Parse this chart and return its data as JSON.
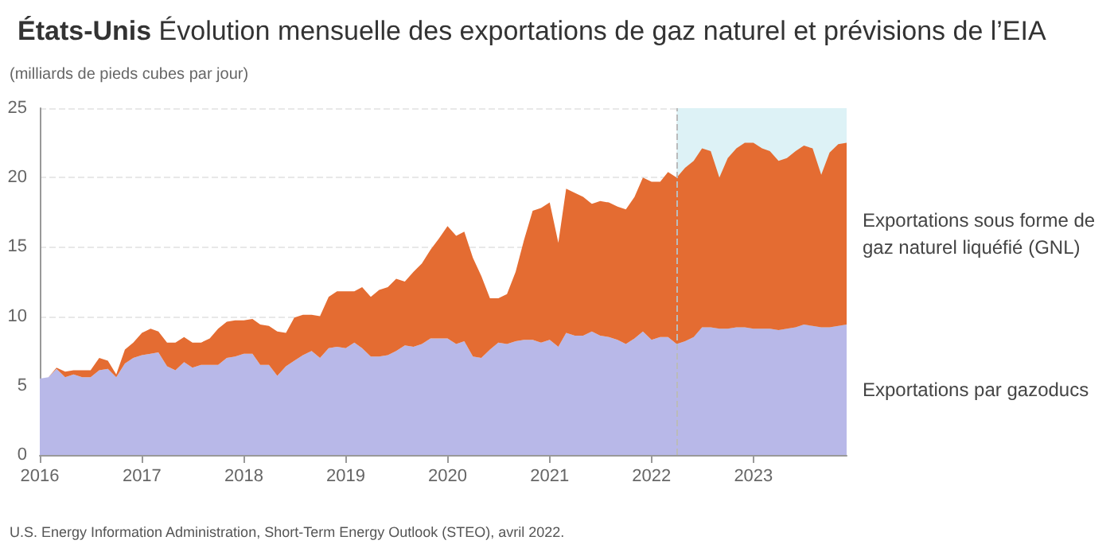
{
  "chart_data": {
    "type": "area",
    "title": "États-Unis",
    "subtitle": "Évolution mensuelle des exportations de gaz naturel et prévisions de l’EIA",
    "ylabel": "(milliards de pieds cubes par jour)",
    "annotations": [
      "U.S. Energy Information Administration, Short-Term Energy Outlook (STEO), avril 2022."
    ],
    "x": [
      "2016-01",
      "2016-02",
      "2016-03",
      "2016-04",
      "2016-05",
      "2016-06",
      "2016-07",
      "2016-08",
      "2016-09",
      "2016-10",
      "2016-11",
      "2016-12",
      "2017-01",
      "2017-02",
      "2017-03",
      "2017-04",
      "2017-05",
      "2017-06",
      "2017-07",
      "2017-08",
      "2017-09",
      "2017-10",
      "2017-11",
      "2017-12",
      "2018-01",
      "2018-02",
      "2018-03",
      "2018-04",
      "2018-05",
      "2018-06",
      "2018-07",
      "2018-08",
      "2018-09",
      "2018-10",
      "2018-11",
      "2018-12",
      "2019-01",
      "2019-02",
      "2019-03",
      "2019-04",
      "2019-05",
      "2019-06",
      "2019-07",
      "2019-08",
      "2019-09",
      "2019-10",
      "2019-11",
      "2019-12",
      "2020-01",
      "2020-02",
      "2020-03",
      "2020-04",
      "2020-05",
      "2020-06",
      "2020-07",
      "2020-08",
      "2020-09",
      "2020-10",
      "2020-11",
      "2020-12",
      "2021-01",
      "2021-02",
      "2021-03",
      "2021-04",
      "2021-05",
      "2021-06",
      "2021-07",
      "2021-08",
      "2021-09",
      "2021-10",
      "2021-11",
      "2021-12",
      "2022-01",
      "2022-02",
      "2022-03",
      "2022-04",
      "2022-05",
      "2022-06",
      "2022-07",
      "2022-08",
      "2022-09",
      "2022-10",
      "2022-11",
      "2022-12",
      "2023-01",
      "2023-02",
      "2023-03",
      "2023-04",
      "2023-05",
      "2023-06",
      "2023-07",
      "2023-08",
      "2023-09",
      "2023-10",
      "2023-11",
      "2023-12"
    ],
    "stacked": true,
    "series": [
      {
        "name": "Exportations par gazoducs",
        "color": "#b8b8e8",
        "values": [
          5.5,
          5.6,
          6.2,
          5.6,
          5.8,
          5.6,
          5.6,
          6.1,
          6.2,
          5.6,
          6.6,
          7.0,
          7.2,
          7.3,
          7.4,
          6.4,
          6.1,
          6.7,
          6.3,
          6.5,
          6.5,
          6.5,
          7.0,
          7.1,
          7.3,
          7.3,
          6.5,
          6.5,
          5.7,
          6.4,
          6.8,
          7.2,
          7.5,
          7.0,
          7.7,
          7.8,
          7.7,
          8.1,
          7.7,
          7.1,
          7.1,
          7.2,
          7.5,
          7.9,
          7.8,
          8.0,
          8.4,
          8.4,
          8.4,
          8.0,
          8.2,
          7.1,
          7.0,
          7.6,
          8.1,
          8.0,
          8.2,
          8.3,
          8.3,
          8.1,
          8.3,
          7.8,
          8.8,
          8.6,
          8.6,
          8.9,
          8.6,
          8.5,
          8.3,
          8.0,
          8.4,
          8.9,
          8.3,
          8.5,
          8.5,
          8.0,
          8.2,
          8.5,
          9.2,
          9.2,
          9.1,
          9.1,
          9.2,
          9.2,
          9.1,
          9.1,
          9.1,
          9.0,
          9.1,
          9.2,
          9.4,
          9.3,
          9.2,
          9.2,
          9.3,
          9.4
        ]
      },
      {
        "name": "Exportations sous forme de gaz naturel liquéfié (GNL)",
        "color": "#e46c32",
        "values": [
          0,
          0,
          0.1,
          0.4,
          0.3,
          0.5,
          0.5,
          0.9,
          0.6,
          0.2,
          1.0,
          1.1,
          1.6,
          1.8,
          1.5,
          1.7,
          2.0,
          1.8,
          1.8,
          1.6,
          1.9,
          2.6,
          2.6,
          2.6,
          2.4,
          2.5,
          2.9,
          2.8,
          3.2,
          2.4,
          3.1,
          2.9,
          2.6,
          3.0,
          3.7,
          4.0,
          4.1,
          3.7,
          4.4,
          4.3,
          4.8,
          4.9,
          5.2,
          4.6,
          5.4,
          5.8,
          6.4,
          7.2,
          8.1,
          7.8,
          7.9,
          7.1,
          5.9,
          3.7,
          3.2,
          3.6,
          5.0,
          7.2,
          9.3,
          9.7,
          9.9,
          7.5,
          10.4,
          10.3,
          10.0,
          9.2,
          9.7,
          9.7,
          9.6,
          9.7,
          10.2,
          11.1,
          11.4,
          11.2,
          11.9,
          12.0,
          12.5,
          12.7,
          12.9,
          12.7,
          10.9,
          12.3,
          12.9,
          13.3,
          13.4,
          13.0,
          12.8,
          12.2,
          12.3,
          12.7,
          12.9,
          12.8,
          11.0,
          12.6,
          13.1,
          13.1
        ]
      }
    ],
    "xlim": [
      "2016-01",
      "2023-12"
    ],
    "xticks": [
      "2016",
      "2017",
      "2018",
      "2019",
      "2020",
      "2021",
      "2022",
      "2023"
    ],
    "ylim": [
      0,
      25
    ],
    "yticks": [
      0,
      5,
      10,
      15,
      20,
      25
    ],
    "grid": "y",
    "legend": false,
    "bands": [
      {
        "axis": "x",
        "from": "2022-04",
        "to": "2023-12",
        "color": "#ddf2f6"
      }
    ],
    "ref_lines": [
      {
        "axis": "x",
        "value": "2022-04",
        "color": "#bbbbbb",
        "line_style": "dashed"
      }
    ]
  }
}
